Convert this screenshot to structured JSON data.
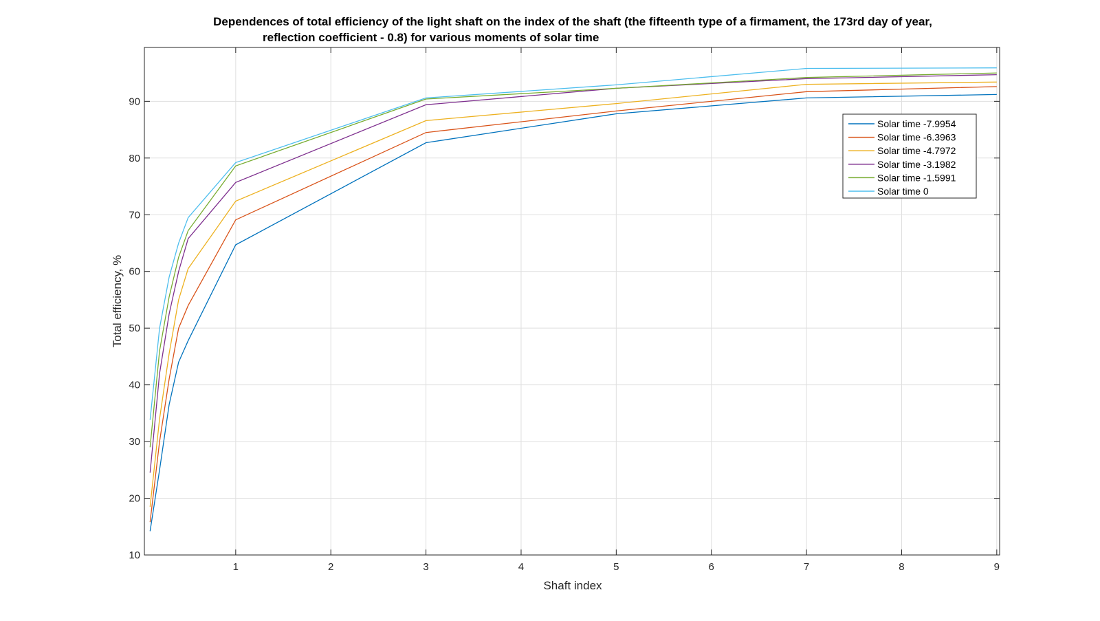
{
  "chart_data": {
    "type": "line",
    "title": "Dependences of total efficiency of the light shaft on the index of the shaft (the fifteenth type of a firmament, the 173rd day of year,",
    "subtitle": "reflection coefficient - 0.8) for various moments of solar time",
    "xlabel": "Shaft index",
    "ylabel": "Total efficiency, %",
    "xlim": [
      0.04,
      9.03
    ],
    "ylim": [
      10,
      99.5
    ],
    "xticks": [
      1,
      2,
      3,
      4,
      5,
      6,
      7,
      8,
      9
    ],
    "yticks": [
      10,
      20,
      30,
      40,
      50,
      60,
      70,
      80,
      90
    ],
    "grid": true,
    "legend_position": "top-right",
    "x": [
      0.1,
      0.2,
      0.3,
      0.4,
      0.5,
      1,
      3,
      5,
      7,
      9
    ],
    "series": [
      {
        "name": "Solar time -7.9954",
        "color": "#0072BD",
        "values": [
          14.2,
          25.0,
          36.5,
          44.0,
          47.8,
          64.7,
          82.7,
          87.8,
          90.6,
          91.2
        ]
      },
      {
        "name": "Solar time -6.3963",
        "color": "#D95319",
        "values": [
          15.8,
          30.0,
          41.0,
          50.0,
          54.0,
          69.1,
          84.5,
          88.3,
          91.7,
          92.6
        ]
      },
      {
        "name": "Solar time -4.7972",
        "color": "#EDB120",
        "values": [
          18.5,
          34.0,
          45.5,
          55.0,
          60.5,
          72.4,
          86.6,
          89.6,
          93.0,
          93.4
        ]
      },
      {
        "name": "Solar time -3.1982",
        "color": "#7E2F8E",
        "values": [
          24.5,
          42.0,
          52.5,
          60.0,
          65.8,
          75.7,
          89.4,
          92.3,
          94.0,
          94.7
        ]
      },
      {
        "name": "Solar time -1.5991",
        "color": "#77AC30",
        "values": [
          29.0,
          46.0,
          55.5,
          62.5,
          67.2,
          78.6,
          90.4,
          92.3,
          94.2,
          95.0
        ]
      },
      {
        "name": "Solar time 0",
        "color": "#4DBEEE",
        "values": [
          33.8,
          50.0,
          59.0,
          65.0,
          69.5,
          79.2,
          90.6,
          92.9,
          95.8,
          95.9
        ]
      }
    ]
  }
}
